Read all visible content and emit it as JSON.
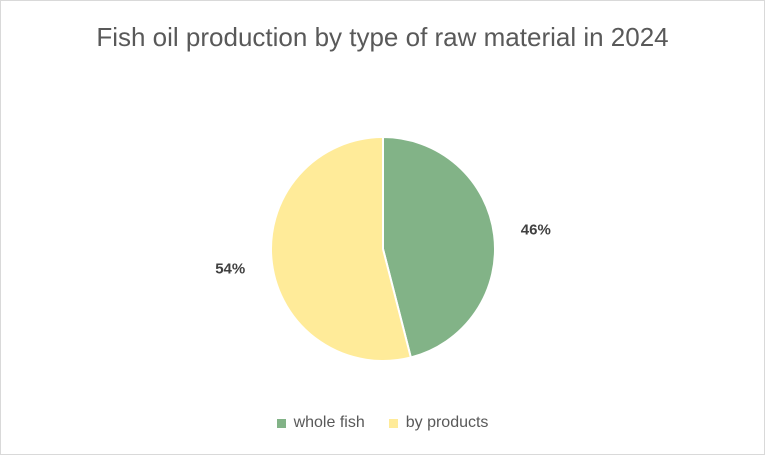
{
  "chart_data": {
    "type": "pie",
    "title": "Fish oil production by type of raw material in 2024",
    "categories": [
      "whole fish",
      "by products"
    ],
    "values": [
      46,
      54
    ],
    "data_labels": [
      "46%",
      "54%"
    ],
    "colors": [
      "#82B387",
      "#FFEB99"
    ],
    "legend_position": "bottom"
  }
}
